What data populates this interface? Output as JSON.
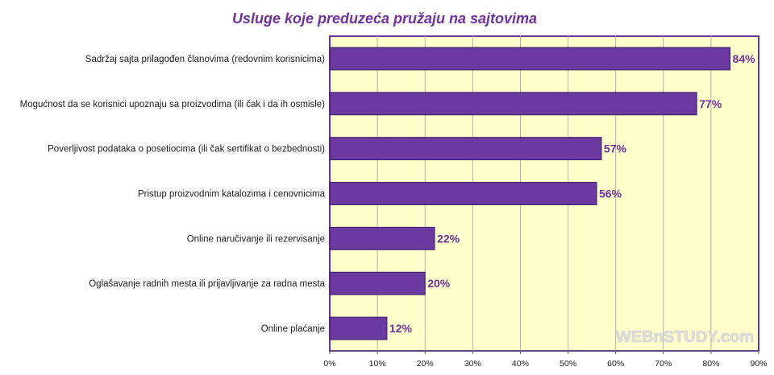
{
  "chart_data": {
    "type": "bar",
    "orientation": "horizontal",
    "title": "Usluge koje preduzeća pružaju na sajtovima",
    "categories": [
      "Sadržaj sajta prilagođen članovima (redovnim korisnicima)",
      "Mogućnost da se korisnici upoznaju sa proizvodima (ili čak i da ih osmisle)",
      "Poverljivost podataka o posetiocima (ili čak sertifikat o bezbednosti)",
      "Pristup proizvodnim katalozima i cenovnicima",
      "Online naručivanje ili rezervisanje",
      "Oglašavanje radnih mesta ili prijavljivanje za radna mesta",
      "Online plaćanje"
    ],
    "values": [
      84,
      77,
      57,
      56,
      22,
      20,
      12
    ],
    "data_labels": [
      "84%",
      "77%",
      "57%",
      "56%",
      "22%",
      "20%",
      "12%"
    ],
    "xlim": [
      0,
      90
    ],
    "x_ticks": [
      "0%",
      "10%",
      "20%",
      "30%",
      "40%",
      "50%",
      "60%",
      "70%",
      "80%",
      "90%"
    ],
    "grid": "vertical",
    "legend": "none",
    "colors": {
      "bar": "#6a3aa0",
      "bar_edge": "#3d1f66",
      "plot_background": "#ffffcc",
      "plot_border": "#7030a0",
      "gridline": "#b0b0b0",
      "title": "#7030a0",
      "data_label": "#7030a0",
      "watermark": "#e0e0e0"
    }
  },
  "watermark": "WEBnSTUDY.com"
}
